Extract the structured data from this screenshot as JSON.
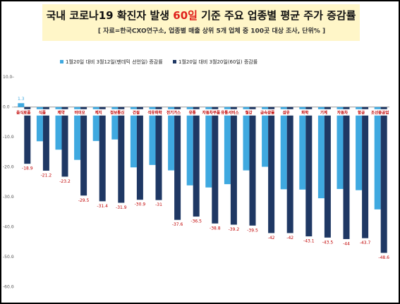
{
  "chart_data": {
    "type": "bar",
    "title": [
      "국내 코로나19 확진자 발생 ",
      "60일",
      " 기준 주요 업종별 평균 주가 증감률"
    ],
    "subtitle": "[ 자료=한국CXO연구소, 업종별 매출 상위 5개 업체 중 100곳 대상 조사, 단위% ]",
    "categories": [
      "음식료품",
      "식품",
      "제약",
      "바이오",
      "제지",
      "정보통신",
      "건설",
      "석유화학",
      "전기가스",
      "유통",
      "자동차부품",
      "유통서비스",
      "철강",
      "금속광물",
      "섬유",
      "화학",
      "기계",
      "자동차",
      "항공",
      "조선중공업"
    ],
    "series": [
      {
        "name": "1월20일 대비 3월12일(팬데믹 선언일) 증감률",
        "color": "#3fa9e0",
        "values": [
          1.3,
          -11.4,
          -14.2,
          -17.6,
          -11.3,
          -10.8,
          -20.1,
          -19.3,
          -21.1,
          -26.1,
          -26.8,
          -25.7,
          -21.1,
          -19.9,
          -27.4,
          -27.5,
          -30.4,
          -27.3,
          -27.7,
          -34.1
        ]
      },
      {
        "name": "1월20일 대비 3월20일(60일) 증감률",
        "color": "#1f3864",
        "values": [
          -18.9,
          -21.2,
          -23.2,
          -29.5,
          -31.4,
          -31.9,
          -30.9,
          -31.0,
          -37.6,
          -36.5,
          -38.8,
          -39.2,
          -39.5,
          -42.0,
          -42.0,
          -43.1,
          -43.5,
          -44.0,
          -43.7,
          -48.6
        ]
      }
    ],
    "ylim": [
      -60,
      15
    ],
    "yticks": [
      {
        "value": 10,
        "label": "10.0"
      },
      {
        "value": 0,
        "label": "0.0"
      },
      {
        "value": -10,
        "label": "-10.0"
      },
      {
        "value": -20,
        "label": "-20.0"
      },
      {
        "value": -30,
        "label": "-30.0"
      },
      {
        "value": -40,
        "label": "-40.0"
      },
      {
        "value": -50,
        "label": "-50.0"
      },
      {
        "value": -60,
        "label": "-60.0"
      }
    ]
  }
}
